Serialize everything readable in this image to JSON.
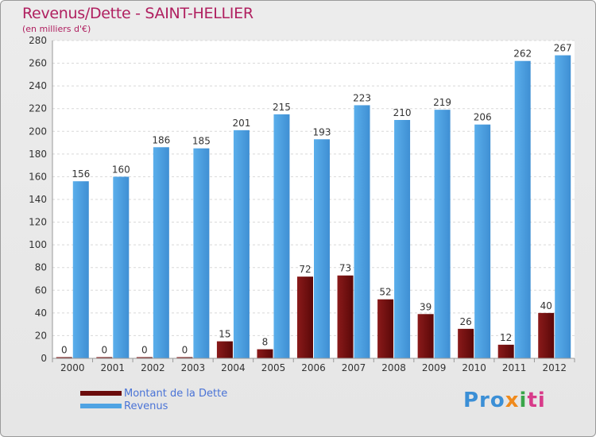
{
  "title": "Revenus/Dette - SAINT-HELLIER",
  "subtitle": "(en milliers d'€)",
  "colors": {
    "dette": "#6b0c0c",
    "revenus": "#4fa3e3",
    "title": "#b02060",
    "legend_text": "#4a73d6"
  },
  "chart_data": {
    "type": "bar",
    "title": "Revenus/Dette - SAINT-HELLIER",
    "subtitle": "(en milliers d'€)",
    "categories": [
      "2000",
      "2001",
      "2002",
      "2003",
      "2004",
      "2005",
      "2006",
      "2007",
      "2008",
      "2009",
      "2010",
      "2011",
      "2012"
    ],
    "series": [
      {
        "name": "Montant de la Dette",
        "color": "#6b0c0c",
        "values": [
          0,
          0,
          0,
          0,
          15,
          8,
          72,
          73,
          52,
          39,
          26,
          12,
          40
        ]
      },
      {
        "name": "Revenus",
        "color": "#4fa3e3",
        "values": [
          156,
          160,
          186,
          185,
          201,
          215,
          193,
          223,
          210,
          219,
          206,
          262,
          267
        ]
      }
    ],
    "ylim": [
      0,
      280
    ],
    "yticks": [
      0,
      20,
      40,
      60,
      80,
      100,
      120,
      140,
      160,
      180,
      200,
      220,
      240,
      260,
      280
    ],
    "grid": true,
    "legend_position": "bottom-left"
  },
  "legend": {
    "items": [
      {
        "label": "Montant de la Dette",
        "color": "#6b0c0c"
      },
      {
        "label": "Revenus",
        "color": "#4fa3e3"
      }
    ]
  },
  "logo": {
    "parts": [
      "Pro",
      "x",
      "i",
      "ti"
    ]
  }
}
